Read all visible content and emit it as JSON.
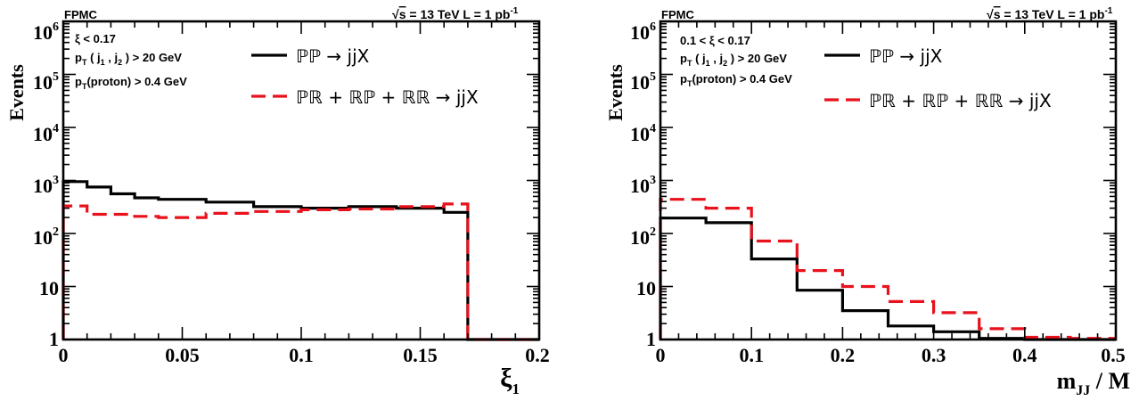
{
  "chart_data": [
    {
      "type": "line",
      "drawstyle": "histogram-steps",
      "xlabel": "ξ",
      "xlabel_sub": "1",
      "ylabel": "Events",
      "xlim": [
        0,
        0.2
      ],
      "ylim": [
        1,
        1000000
      ],
      "yscale": "log",
      "grid": false,
      "legend_location": "top-right",
      "x_ticks": [
        "0",
        "0.05",
        "0.1",
        "0.15",
        "0.2"
      ],
      "y_ticks": [
        {
          "base": "1",
          "exp": ""
        },
        {
          "base": "10",
          "exp": ""
        },
        {
          "base": "10",
          "exp": "2"
        },
        {
          "base": "10",
          "exp": "3"
        },
        {
          "base": "10",
          "exp": "4"
        },
        {
          "base": "10",
          "exp": "5"
        },
        {
          "base": "10",
          "exp": "6"
        }
      ],
      "top_left_label": "FPMC",
      "energy_label": {
        "sqrt": "√",
        "s": "s",
        "rest": " = 13 TeV  L = 1 pb",
        "sup": "-1"
      },
      "cuts": [
        {
          "text": "ξ < 0.17"
        },
        {
          "pre": "p",
          "sub1": "T",
          "mid": " ( j",
          "sub2": "1",
          "mid2": " , j",
          "sub3": "2",
          "post": " ) > 20 GeV"
        },
        {
          "pre": "p",
          "sub1": "T",
          "mid": "(proton) > 0.4 GeV"
        }
      ],
      "series": [
        {
          "name": "ℙℙ → jjX",
          "color": "#000000",
          "style": "solid",
          "bin_edges": [
            0,
            0.01,
            0.02,
            0.03,
            0.04,
            0.06,
            0.08,
            0.1,
            0.12,
            0.14,
            0.16,
            0.17,
            0.18,
            0.19,
            0.2
          ],
          "values": [
            950,
            750,
            560,
            470,
            440,
            390,
            320,
            300,
            320,
            300,
            250,
            1,
            1,
            1
          ]
        },
        {
          "name": "ℙℝ + ℝℙ + ℝℝ → jjX",
          "color": "#e8111c",
          "style": "dashed",
          "bin_edges": [
            0,
            0.01,
            0.02,
            0.03,
            0.04,
            0.06,
            0.08,
            0.1,
            0.12,
            0.14,
            0.16,
            0.17,
            0.18,
            0.19,
            0.2
          ],
          "values": [
            330,
            230,
            230,
            210,
            200,
            240,
            260,
            280,
            290,
            320,
            360,
            1,
            1,
            1
          ]
        }
      ]
    },
    {
      "type": "line",
      "drawstyle": "histogram-steps",
      "xlabel": "m",
      "xlabel_sub": "JJ",
      "xlabel_rest": " / M",
      "ylabel": "Events",
      "xlim": [
        0,
        0.5
      ],
      "ylim": [
        1,
        1000000
      ],
      "yscale": "log",
      "grid": false,
      "legend_location": "top-right",
      "x_ticks": [
        "0",
        "0.1",
        "0.2",
        "0.3",
        "0.4",
        "0.5"
      ],
      "y_ticks": [
        {
          "base": "1",
          "exp": ""
        },
        {
          "base": "10",
          "exp": ""
        },
        {
          "base": "10",
          "exp": "2"
        },
        {
          "base": "10",
          "exp": "3"
        },
        {
          "base": "10",
          "exp": "4"
        },
        {
          "base": "10",
          "exp": "5"
        },
        {
          "base": "10",
          "exp": "6"
        }
      ],
      "top_left_label": "FPMC",
      "energy_label": {
        "sqrt": "√",
        "s": "s",
        "rest": " = 13 TeV  L = 1 pb",
        "sup": "-1"
      },
      "cuts": [
        {
          "text": "0.1 < ξ < 0.17"
        },
        {
          "pre": "p",
          "sub1": "T",
          "mid": " ( j",
          "sub2": "1",
          "mid2": " , j",
          "sub3": "2",
          "post": " ) > 20 GeV"
        },
        {
          "pre": "p",
          "sub1": "T",
          "mid": "(proton) > 0.4 GeV"
        }
      ],
      "series": [
        {
          "name": "ℙℙ → jjX",
          "color": "#000000",
          "style": "solid",
          "bin_edges": [
            0,
            0.05,
            0.1,
            0.15,
            0.2,
            0.25,
            0.3,
            0.35,
            0.4,
            0.45,
            0.5
          ],
          "values": [
            195,
            160,
            33,
            8.5,
            3.5,
            1.8,
            1.4,
            1.05,
            1.0,
            1.0
          ]
        },
        {
          "name": "ℙℝ + ℝℙ + ℝℝ → jjX",
          "color": "#e8111c",
          "style": "dashed",
          "bin_edges": [
            0,
            0.05,
            0.1,
            0.15,
            0.2,
            0.25,
            0.3,
            0.35,
            0.4,
            0.45,
            0.5
          ],
          "values": [
            440,
            300,
            72,
            20,
            10,
            5.2,
            3.2,
            1.6,
            1.1,
            1.05
          ]
        }
      ]
    }
  ]
}
